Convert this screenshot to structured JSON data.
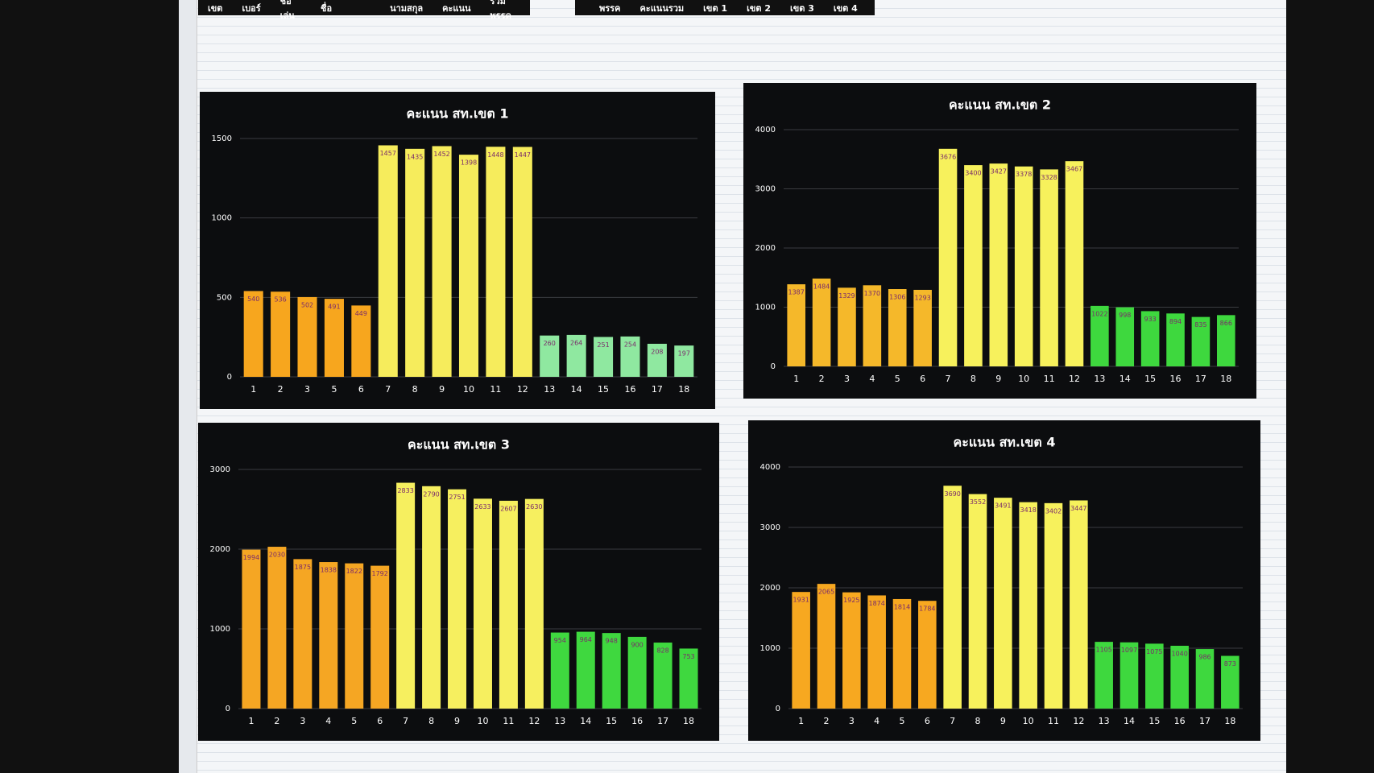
{
  "header": {
    "cells_left": [
      "เขต",
      "เบอร์",
      "ชื่อเล่น",
      "ชื่อ",
      "นามสกุล",
      "คะแนน",
      "รวมพรรค"
    ],
    "cells_right": [
      "พรรค",
      "คะแนนรวม",
      "เขต 1",
      "เขต 2",
      "เขต 3",
      "เขต 4"
    ]
  },
  "chart_data": [
    {
      "type": "bar",
      "title": "คะแนน สท.เขต 1",
      "categories": [
        "1",
        "2",
        "3",
        "5",
        "6",
        "7",
        "8",
        "9",
        "10",
        "11",
        "12",
        "13",
        "14",
        "15",
        "16",
        "17",
        "18"
      ],
      "values": [
        540,
        536,
        502,
        491,
        449,
        1457,
        1435,
        1452,
        1398,
        1448,
        1447,
        260,
        264,
        251,
        254,
        208,
        197
      ],
      "colors": [
        "#f7a61e",
        "#f7a61e",
        "#f7a61e",
        "#f7a61e",
        "#f7a61e",
        "#f6ec5c",
        "#f6ec5c",
        "#f6ec5c",
        "#f6ec5c",
        "#f6ec5c",
        "#f6ec5c",
        "#8fe8a0",
        "#8fe8a0",
        "#8fe8a0",
        "#8fe8a0",
        "#8fe8a0",
        "#8fe8a0"
      ],
      "ylim": [
        0,
        1500
      ],
      "yticks": [
        0,
        500,
        1000,
        1500
      ],
      "grid": true
    },
    {
      "type": "bar",
      "title": "คะแนน สท.เขต 2",
      "categories": [
        "1",
        "2",
        "3",
        "4",
        "5",
        "6",
        "7",
        "8",
        "9",
        "10",
        "11",
        "12",
        "13",
        "14",
        "15",
        "16",
        "17",
        "18"
      ],
      "values": [
        1387,
        1484,
        1329,
        1370,
        1306,
        1293,
        3676,
        3400,
        3427,
        3378,
        3328,
        3467,
        1022,
        998,
        933,
        894,
        835,
        866
      ],
      "colors": [
        "#f5b82a",
        "#f5b82a",
        "#f5b82a",
        "#f5b82a",
        "#f5b82a",
        "#f5b82a",
        "#f7f15c",
        "#f7f15c",
        "#f7f15c",
        "#f7f15c",
        "#f7f15c",
        "#f7f15c",
        "#3ed83e",
        "#3ed83e",
        "#3ed83e",
        "#3ed83e",
        "#3ed83e",
        "#3ed83e"
      ],
      "ylim": [
        0,
        4000
      ],
      "yticks": [
        0,
        1000,
        2000,
        3000,
        4000
      ],
      "grid": true
    },
    {
      "type": "bar",
      "title": "คะแนน สท.เขต 3",
      "categories": [
        "1",
        "2",
        "3",
        "4",
        "5",
        "6",
        "7",
        "8",
        "9",
        "10",
        "11",
        "12",
        "13",
        "14",
        "15",
        "16",
        "17",
        "18"
      ],
      "values": [
        1994,
        2030,
        1875,
        1838,
        1822,
        1792,
        2833,
        2790,
        2751,
        2633,
        2607,
        2630,
        954,
        964,
        948,
        900,
        828,
        753
      ],
      "colors": [
        "#f5a623",
        "#f5a623",
        "#f5a623",
        "#f5a623",
        "#f5a623",
        "#f5a623",
        "#f6ef5f",
        "#f6ef5f",
        "#f6ef5f",
        "#f6ef5f",
        "#f6ef5f",
        "#f6ef5f",
        "#3fd83f",
        "#3fd83f",
        "#3fd83f",
        "#3fd83f",
        "#3fd83f",
        "#3fd83f"
      ],
      "ylim": [
        0,
        3000
      ],
      "yticks": [
        0,
        1000,
        2000,
        3000
      ],
      "grid": true
    },
    {
      "type": "bar",
      "title": "คะแนน สท.เขต 4",
      "categories": [
        "1",
        "2",
        "3",
        "4",
        "5",
        "6",
        "7",
        "8",
        "9",
        "10",
        "11",
        "12",
        "13",
        "14",
        "15",
        "16",
        "17",
        "18"
      ],
      "values": [
        1931,
        2065,
        1925,
        1874,
        1814,
        1784,
        3690,
        3552,
        3491,
        3418,
        3402,
        3447,
        1105,
        1097,
        1075,
        1040,
        986,
        873
      ],
      "colors": [
        "#f7a820",
        "#f7a820",
        "#f7a820",
        "#f7a820",
        "#f7a820",
        "#f7a820",
        "#f7f15c",
        "#f7f15c",
        "#f7f15c",
        "#f7f15c",
        "#f7f15c",
        "#f7f15c",
        "#3ed83e",
        "#3ed83e",
        "#3ed83e",
        "#3ed83e",
        "#3ed83e",
        "#3ed83e"
      ],
      "ylim": [
        0,
        4000
      ],
      "yticks": [
        0,
        1000,
        2000,
        3000,
        4000
      ],
      "grid": true
    }
  ]
}
